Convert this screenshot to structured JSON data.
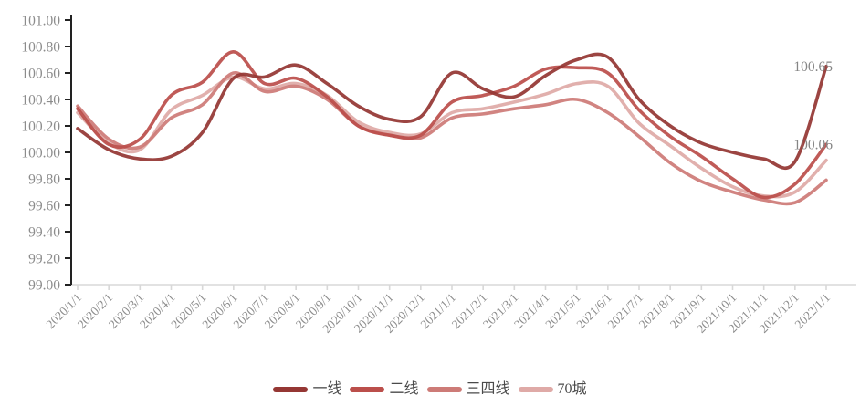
{
  "chart_data": {
    "type": "line",
    "title": "",
    "xlabel": "",
    "ylabel": "",
    "grid": false,
    "legend_position": "bottom",
    "ylim": [
      99.0,
      101.0
    ],
    "ytick_step": 0.2,
    "yticks": [
      "101.00",
      "100.80",
      "100.60",
      "100.40",
      "100.20",
      "100.00",
      "99.80",
      "99.60",
      "99.40",
      "99.20",
      "99.00"
    ],
    "categories": [
      "2020/1/1",
      "2020/2/1",
      "2020/3/1",
      "2020/4/1",
      "2020/5/1",
      "2020/6/1",
      "2020/7/1",
      "2020/8/1",
      "2020/9/1",
      "2020/10/1",
      "2020/11/1",
      "2020/12/1",
      "2021/1/1",
      "2021/2/1",
      "2021/3/1",
      "2021/4/1",
      "2021/5/1",
      "2021/6/1",
      "2021/7/1",
      "2021/8/1",
      "2021/9/1",
      "2021/10/1",
      "2021/11/1",
      "2021/12/1",
      "2022/1/1"
    ],
    "series": [
      {
        "name": "一线",
        "color": "#953734",
        "values": [
          100.18,
          100.02,
          99.95,
          99.97,
          100.15,
          100.56,
          100.57,
          100.66,
          100.52,
          100.35,
          100.25,
          100.27,
          100.6,
          100.48,
          100.42,
          100.58,
          100.7,
          100.72,
          100.4,
          100.2,
          100.07,
          100.0,
          99.95,
          99.93,
          100.65
        ]
      },
      {
        "name": "二线",
        "color": "#bb4f4b",
        "values": [
          100.33,
          100.06,
          100.1,
          100.43,
          100.53,
          100.76,
          100.52,
          100.56,
          100.42,
          100.2,
          100.13,
          100.13,
          100.38,
          100.43,
          100.5,
          100.63,
          100.64,
          100.6,
          100.32,
          100.12,
          99.97,
          99.8,
          99.66,
          99.76,
          100.06
        ]
      },
      {
        "name": "三四线",
        "color": "#cd7b77",
        "values": [
          100.35,
          100.1,
          100.04,
          100.26,
          100.36,
          100.6,
          100.46,
          100.5,
          100.4,
          100.2,
          100.13,
          100.11,
          100.26,
          100.29,
          100.33,
          100.36,
          100.4,
          100.3,
          100.12,
          99.92,
          99.78,
          99.7,
          99.64,
          99.62,
          99.79
        ]
      },
      {
        "name": "70城",
        "color": "#dfaaa7",
        "values": [
          100.3,
          100.07,
          100.02,
          100.32,
          100.43,
          100.57,
          100.48,
          100.52,
          100.43,
          100.23,
          100.15,
          100.14,
          100.3,
          100.33,
          100.38,
          100.44,
          100.52,
          100.5,
          100.22,
          100.05,
          99.88,
          99.74,
          99.67,
          99.7,
          99.94
        ]
      }
    ],
    "annotations": [
      {
        "text": "100.65",
        "value": 100.65
      },
      {
        "text": "100.06",
        "value": 100.06
      }
    ],
    "colors": {
      "axis_line": "#222222",
      "x_axis_line": "#d8d8d8",
      "tick_label": "#8c8c8c",
      "annotation_text": "#858585",
      "legend_label": "#4a4a4a",
      "background": "#ffffff"
    }
  }
}
